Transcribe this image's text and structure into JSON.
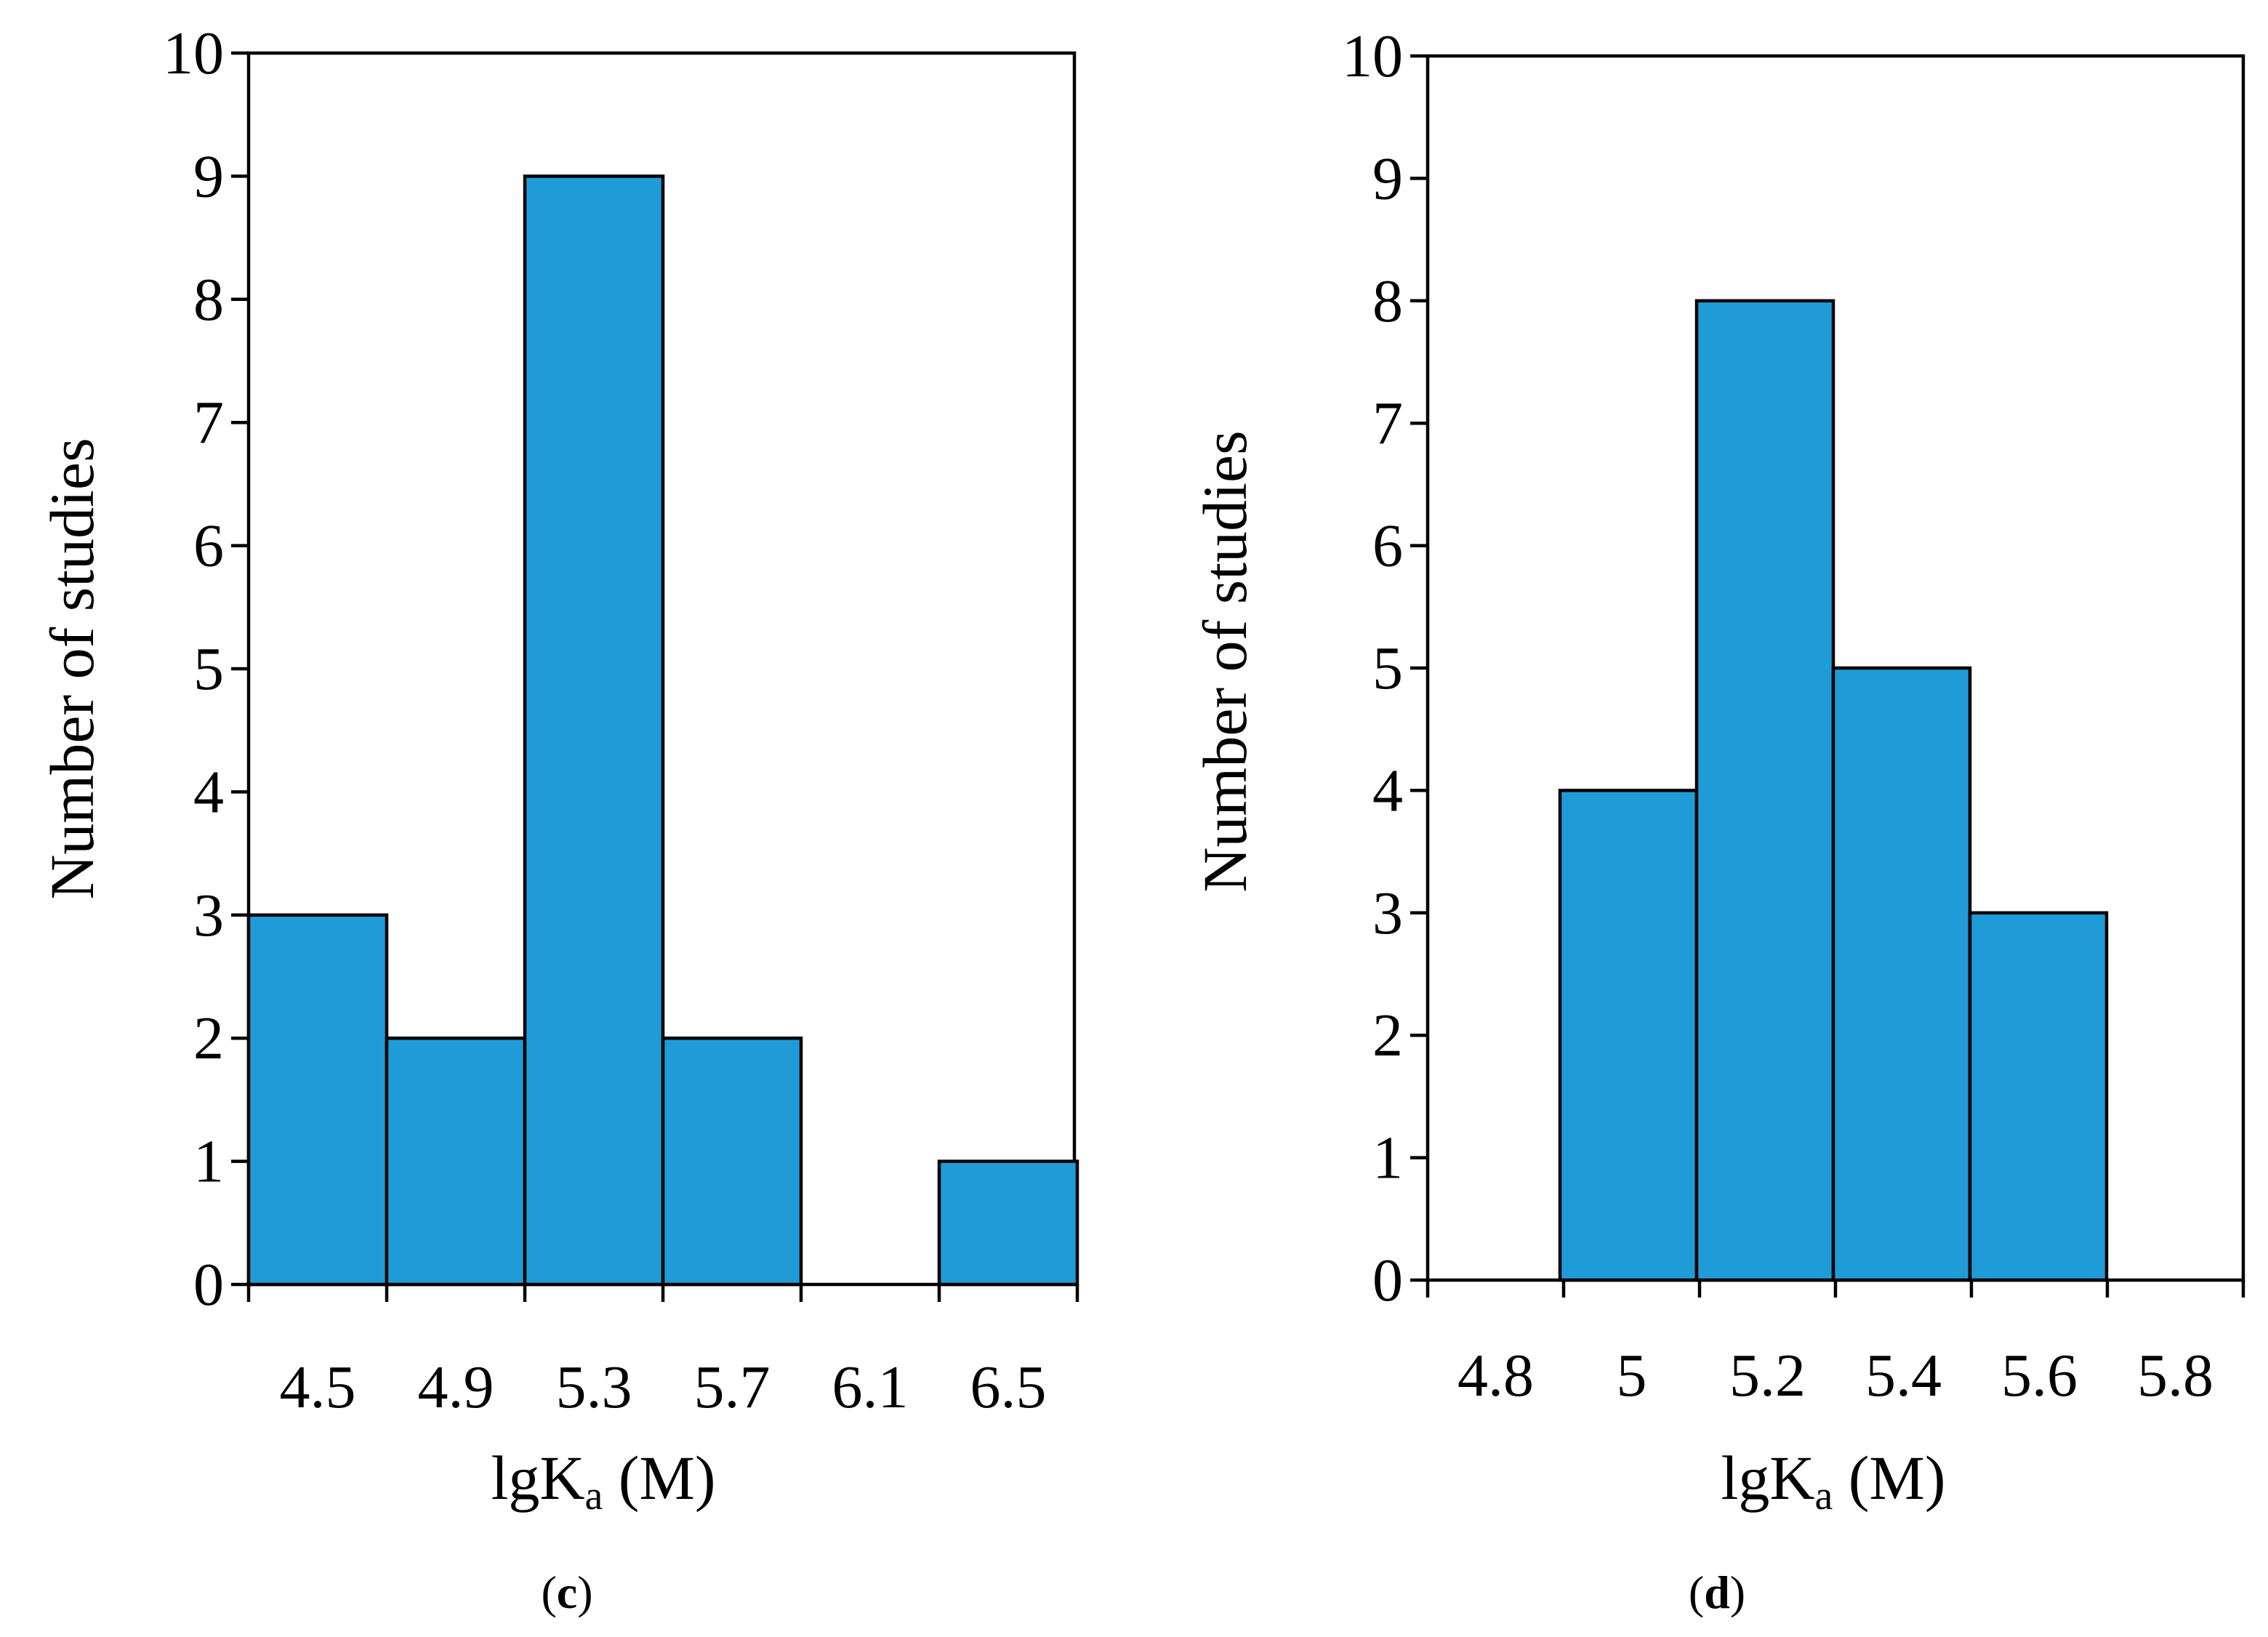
{
  "bar_color": "#1F9BD8",
  "chart_data": [
    {
      "panel": "c",
      "panel_open": "(",
      "panel_close": ")",
      "type": "bar",
      "title": "",
      "xlabel": {
        "main": "lgK",
        "sub": "a",
        "suffix": " (M)"
      },
      "ylabel": "Number of studies",
      "ylim": [
        0,
        10
      ],
      "yticks": [
        0,
        1,
        2,
        3,
        4,
        5,
        6,
        7,
        8,
        9,
        10
      ],
      "categories": [
        "4.5",
        "4.9",
        "5.3",
        "5.7",
        "6.1",
        "6.5"
      ],
      "values": [
        3,
        2,
        9,
        2,
        0,
        1
      ],
      "grid": false,
      "legend": "none"
    },
    {
      "panel": "d",
      "panel_open": "(",
      "panel_close": ")",
      "type": "bar",
      "title": "",
      "xlabel": {
        "main": "lgK",
        "sub": "a",
        "suffix": " (M)"
      },
      "ylabel": "Number of studies",
      "ylim": [
        0,
        10
      ],
      "yticks": [
        0,
        1,
        2,
        3,
        4,
        5,
        6,
        7,
        8,
        9,
        10
      ],
      "categories": [
        "4.8",
        "5",
        "5.2",
        "5.4",
        "5.6",
        "5.8"
      ],
      "values": [
        0,
        4,
        8,
        5,
        3,
        0
      ],
      "grid": false,
      "legend": "none"
    }
  ]
}
